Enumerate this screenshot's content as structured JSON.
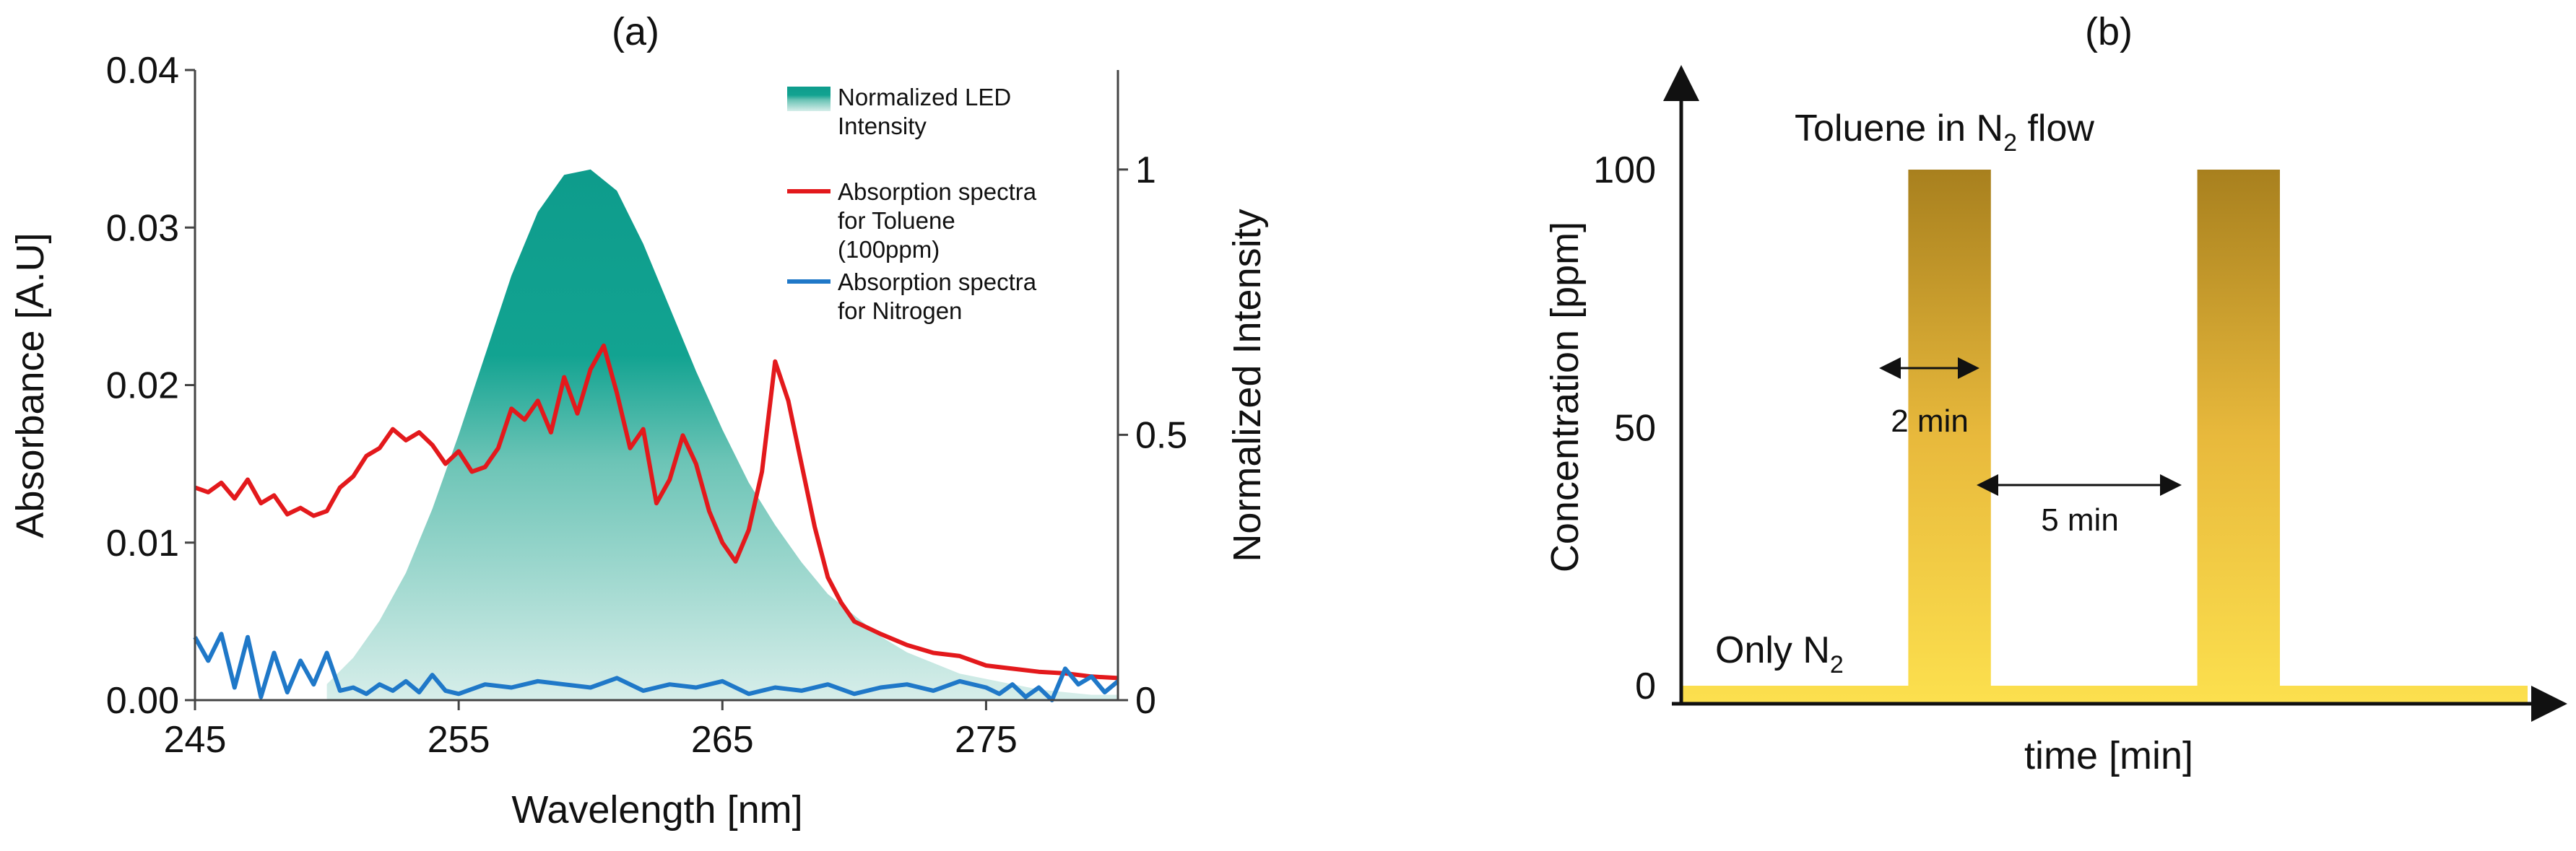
{
  "chart_data": [
    {
      "type": "line",
      "panel_label": "(a)",
      "xlabel": "Wavelength [nm]",
      "ylabel": "Absorbance [A.U]",
      "y2label": "Normalized Intensity",
      "xlim": [
        245,
        280
      ],
      "ylim": [
        0,
        0.04
      ],
      "y2lim": [
        0,
        1.1875
      ],
      "x_ticks": [
        245,
        255,
        265,
        275
      ],
      "y_ticks": [
        0.0,
        0.01,
        0.02,
        0.03,
        0.04
      ],
      "y_tick_labels": [
        "0.00",
        "0.01",
        "0.02",
        "0.03",
        "0.04"
      ],
      "y2_ticks": [
        0,
        0.5,
        1
      ],
      "y2_tick_labels": [
        "0",
        "0.5",
        "1"
      ],
      "legend_position": "top-right",
      "series": [
        {
          "name": "Normalized LED Intensity",
          "type": "area",
          "axis": "y2",
          "color": "#0E9C8C",
          "x": [
            250,
            251,
            252,
            253,
            254,
            255,
            256,
            257,
            258,
            259,
            260,
            261,
            262,
            263,
            264,
            265,
            266,
            267,
            268,
            269,
            270,
            271,
            272,
            273,
            274,
            275,
            276,
            277,
            278,
            279,
            280
          ],
          "y": [
            0.03,
            0.08,
            0.15,
            0.24,
            0.36,
            0.5,
            0.65,
            0.8,
            0.92,
            0.99,
            1.0,
            0.96,
            0.86,
            0.74,
            0.62,
            0.51,
            0.41,
            0.33,
            0.26,
            0.2,
            0.16,
            0.12,
            0.09,
            0.07,
            0.05,
            0.04,
            0.03,
            0.02,
            0.015,
            0.01,
            0.01
          ]
        },
        {
          "name": "Absorption spectra for Toluene (100ppm)",
          "type": "line",
          "axis": "y",
          "color": "#E3191C",
          "x": [
            245,
            245.5,
            246,
            246.5,
            247,
            247.5,
            248,
            248.5,
            249,
            249.5,
            250,
            250.5,
            251,
            251.5,
            252,
            252.5,
            253,
            253.5,
            254,
            254.5,
            255,
            255.5,
            256,
            256.5,
            257,
            257.5,
            258,
            258.5,
            259,
            259.5,
            260,
            260.5,
            261,
            261.5,
            262,
            262.5,
            263,
            263.5,
            264,
            264.5,
            265,
            265.5,
            266,
            266.5,
            267,
            267.5,
            268,
            268.5,
            269,
            269.5,
            270,
            271,
            272,
            273,
            274,
            275,
            276,
            277,
            278,
            279,
            280
          ],
          "y": [
            0.0135,
            0.0132,
            0.0138,
            0.0128,
            0.014,
            0.0125,
            0.013,
            0.0118,
            0.0122,
            0.0117,
            0.012,
            0.0135,
            0.0142,
            0.0155,
            0.016,
            0.0172,
            0.0165,
            0.017,
            0.0162,
            0.015,
            0.0158,
            0.0145,
            0.0148,
            0.016,
            0.0185,
            0.0178,
            0.019,
            0.017,
            0.0205,
            0.0182,
            0.021,
            0.0225,
            0.0195,
            0.016,
            0.0172,
            0.0125,
            0.014,
            0.0168,
            0.015,
            0.012,
            0.01,
            0.0088,
            0.0108,
            0.0145,
            0.0215,
            0.019,
            0.015,
            0.011,
            0.0078,
            0.0062,
            0.005,
            0.0042,
            0.0035,
            0.003,
            0.0028,
            0.0022,
            0.002,
            0.0018,
            0.0017,
            0.0015,
            0.0014
          ]
        },
        {
          "name": "Absorption spectra for Nitrogen",
          "type": "line",
          "axis": "y",
          "color": "#1F78C8",
          "x": [
            245,
            245.5,
            246,
            246.5,
            247,
            247.5,
            248,
            248.5,
            249,
            249.5,
            250,
            250.5,
            251,
            251.5,
            252,
            252.5,
            253,
            253.5,
            254,
            254.5,
            255,
            256,
            257,
            258,
            259,
            260,
            261,
            262,
            263,
            264,
            265,
            266,
            267,
            268,
            269,
            270,
            271,
            272,
            273,
            274,
            275,
            275.5,
            276,
            276.5,
            277,
            277.5,
            278,
            278.5,
            279,
            279.5,
            280
          ],
          "y": [
            0.004,
            0.0025,
            0.0042,
            0.0008,
            0.004,
            0.0002,
            0.003,
            0.0005,
            0.0025,
            0.001,
            0.003,
            0.0006,
            0.0008,
            0.0004,
            0.001,
            0.0006,
            0.0012,
            0.0005,
            0.0016,
            0.0006,
            0.0004,
            0.001,
            0.0008,
            0.0012,
            0.001,
            0.0008,
            0.0014,
            0.0006,
            0.001,
            0.0008,
            0.0012,
            0.0004,
            0.0008,
            0.0006,
            0.001,
            0.0004,
            0.0008,
            0.001,
            0.0006,
            0.0012,
            0.0008,
            0.0004,
            0.001,
            0.0002,
            0.0008,
            0.0,
            0.002,
            0.001,
            0.0015,
            0.0005,
            0.0012
          ]
        }
      ]
    },
    {
      "type": "area",
      "panel_label": "(b)",
      "xlabel": "time [min]",
      "ylabel": "Concentration [ppm]",
      "ylim": [
        0,
        120
      ],
      "y_ticks": [
        0,
        50,
        100
      ],
      "y_tick_labels": [
        "0",
        "50",
        "100"
      ],
      "x_unit": "min",
      "series": [
        {
          "name": "Toluene concentration",
          "color_top": "#A8801E",
          "color_bottom": "#FCE04E",
          "x": [
            0,
            5.5,
            5.5,
            7.5,
            7.5,
            12.5,
            12.5,
            14.5,
            14.5,
            20.5
          ],
          "y": [
            0,
            0,
            100,
            100,
            0,
            0,
            100,
            100,
            0,
            0
          ]
        }
      ],
      "annotations": {
        "pulse_label_main": "Toluene in N",
        "pulse_label_sub": "2",
        "pulse_label_end": " flow",
        "baseline_label_main": "Only N",
        "baseline_label_sub": "2",
        "pulse_width": "2 min",
        "pulse_gap": "5 min"
      }
    }
  ]
}
